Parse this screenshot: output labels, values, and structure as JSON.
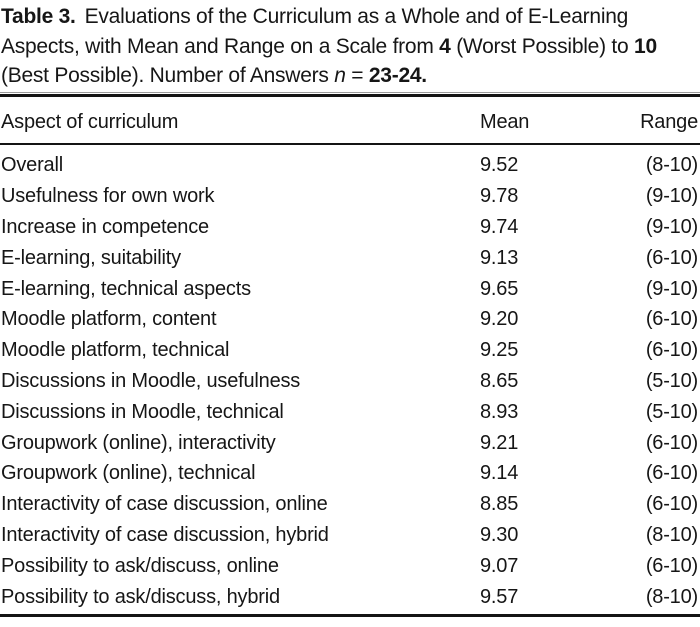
{
  "caption": {
    "label": "Table 3.",
    "line1": "Evaluations of the Curriculum as a Whole and of E-Learning",
    "line2_pre": "Aspects, with Mean and Range on a Scale from ",
    "line2_num1": "4",
    "line2_mid": " (Worst Possible) to ",
    "line2_num2": "10",
    "line3_pre": "(Best Possible). Number of Answers ",
    "line3_var": "n",
    "line3_eq": " = ",
    "line3_num": "23-24."
  },
  "table": {
    "columns": [
      "Aspect of curriculum",
      "Mean",
      "Range"
    ],
    "rows": [
      {
        "aspect": "Overall",
        "mean": "9.52",
        "range": "(8-10)"
      },
      {
        "aspect": "Usefulness for own work",
        "mean": "9.78",
        "range": "(9-10)"
      },
      {
        "aspect": "Increase in competence",
        "mean": "9.74",
        "range": "(9-10)"
      },
      {
        "aspect": "E-learning, suitability",
        "mean": "9.13",
        "range": "(6-10)"
      },
      {
        "aspect": "E-learning, technical aspects",
        "mean": "9.65",
        "range": "(9-10)"
      },
      {
        "aspect": "Moodle platform, content",
        "mean": "9.20",
        "range": "(6-10)"
      },
      {
        "aspect": "Moodle platform, technical",
        "mean": "9.25",
        "range": "(6-10)"
      },
      {
        "aspect": "Discussions in Moodle, usefulness",
        "mean": "8.65",
        "range": "(5-10)"
      },
      {
        "aspect": "Discussions in Moodle, technical",
        "mean": "8.93",
        "range": "(5-10)"
      },
      {
        "aspect": "Groupwork (online), interactivity",
        "mean": "9.21",
        "range": "(6-10)"
      },
      {
        "aspect": "Groupwork (online), technical",
        "mean": "9.14",
        "range": "(6-10)"
      },
      {
        "aspect": "Interactivity of case discussion, online",
        "mean": "8.85",
        "range": "(6-10)"
      },
      {
        "aspect": "Interactivity of case discussion, hybrid",
        "mean": "9.30",
        "range": "(8-10)"
      },
      {
        "aspect": "Possibility to ask/discuss, online",
        "mean": "9.07",
        "range": "(6-10)"
      },
      {
        "aspect": "Possibility to ask/discuss, hybrid",
        "mean": "9.57",
        "range": "(8-10)"
      }
    ]
  },
  "colors": {
    "background": "#ffffff",
    "text": "#161616",
    "thick_rule": "#141414",
    "thin_rule": "#9b9b9b"
  }
}
